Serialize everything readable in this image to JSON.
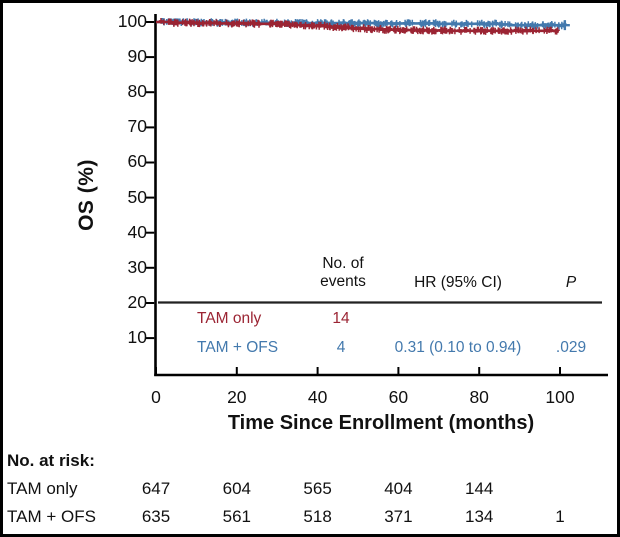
{
  "figure": {
    "background": "#ffffff",
    "border_color": "#000000"
  },
  "chart_data": {
    "type": "line",
    "subtype": "kaplan_meier_step",
    "title": "",
    "xlabel": "Time Since Enrollment (months)",
    "ylabel": "OS (%)",
    "xticks": [
      0,
      20,
      40,
      60,
      80,
      100
    ],
    "yticks": [
      100,
      90,
      80,
      70,
      60,
      50,
      40,
      30,
      20,
      10
    ],
    "xlim": [
      0,
      112
    ],
    "ylim": [
      5,
      102
    ],
    "grid": false,
    "legend_position": "inset-table",
    "series": [
      {
        "name": "TAM only",
        "color": "#9b2433",
        "events": 14,
        "points": [
          [
            0,
            100
          ],
          [
            4,
            99.8
          ],
          [
            10,
            99.7
          ],
          [
            16,
            99.6
          ],
          [
            24,
            99.5
          ],
          [
            30,
            99.3
          ],
          [
            34,
            99.1
          ],
          [
            38,
            98.9
          ],
          [
            42,
            98.6
          ],
          [
            45,
            98.4
          ],
          [
            48,
            98.2
          ],
          [
            52,
            98.0
          ],
          [
            56,
            97.8
          ],
          [
            60,
            97.7
          ],
          [
            66,
            97.6
          ],
          [
            72,
            97.5
          ],
          [
            99.5,
            97.5
          ]
        ],
        "censor_marks_to": 99.5,
        "terminal_plus": false
      },
      {
        "name": "TAM + OFS",
        "color": "#4379ad",
        "events": 4,
        "points": [
          [
            0,
            100
          ],
          [
            5,
            99.9
          ],
          [
            14,
            99.8
          ],
          [
            30,
            99.7
          ],
          [
            55,
            99.6
          ],
          [
            70,
            99.5
          ],
          [
            85,
            99.3
          ],
          [
            88,
            99.1
          ],
          [
            101.2,
            99.1
          ]
        ],
        "censor_marks_to": 101.2,
        "terminal_plus": true
      }
    ],
    "inset_table": {
      "headers": [
        "No. of\nevents",
        "HR (95% CI)",
        "P"
      ],
      "rows": [
        {
          "name": "TAM only",
          "events": "14",
          "hr": "",
          "p": ""
        },
        {
          "name": "TAM + OFS",
          "events": "4",
          "hr": "0.31 (0.10 to 0.94)",
          "p": ".029"
        }
      ]
    },
    "at_risk": {
      "title": "No. at risk:",
      "times": [
        0,
        20,
        40,
        60,
        80,
        100
      ],
      "rows": [
        {
          "name": "TAM only",
          "counts": [
            "647",
            "604",
            "565",
            "404",
            "144",
            ""
          ]
        },
        {
          "name": "TAM + OFS",
          "counts": [
            "635",
            "561",
            "518",
            "371",
            "134",
            "1"
          ]
        }
      ]
    }
  }
}
